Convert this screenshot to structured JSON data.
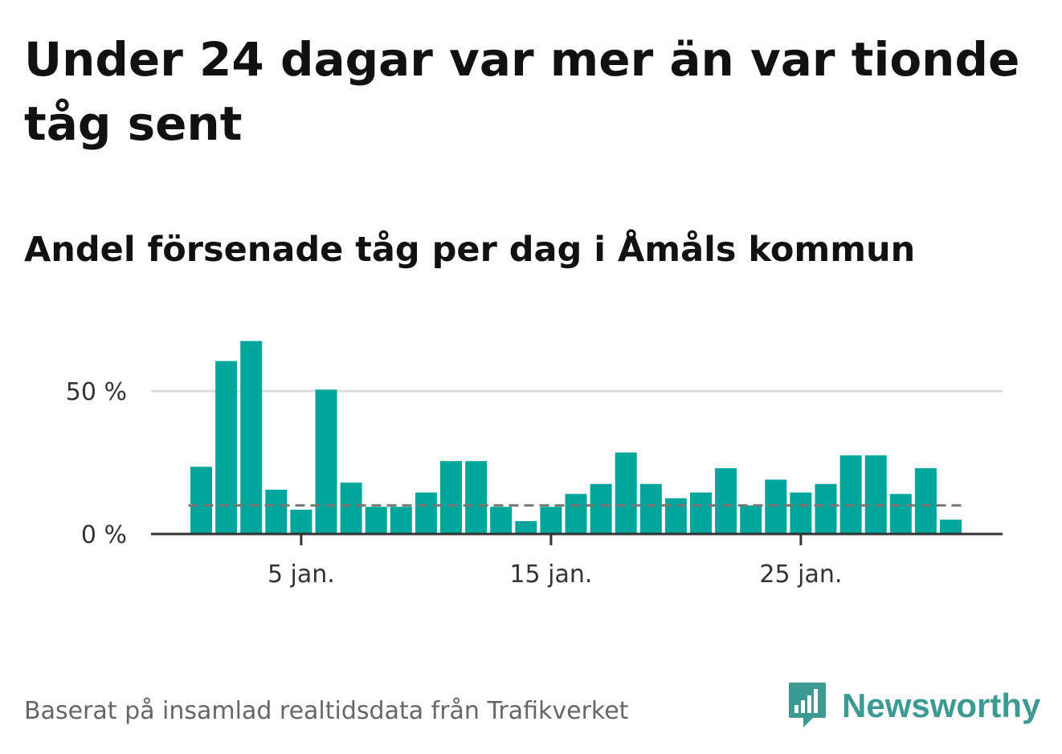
{
  "title": "Under 24 dagar var mer än var tionde tåg sent",
  "subtitle": "Andel försenade tåg per dag i Åmåls kommun",
  "source": "Baserat på insamlad realtidsdata från Trafikverket",
  "brand": {
    "name": "Newsworthy",
    "logo_icon": "newsworthy-logo-icon",
    "color": "#3c9a92"
  },
  "chart_data": {
    "type": "bar",
    "title": "Under 24 dagar var mer än var tionde tåg sent",
    "subtitle": "Andel försenade tåg per dag i Åmåls kommun",
    "xlabel": "",
    "ylabel": "",
    "categories": [
      "1 jan.",
      "2 jan.",
      "3 jan.",
      "4 jan.",
      "5 jan.",
      "6 jan.",
      "7 jan.",
      "8 jan.",
      "9 jan.",
      "10 jan.",
      "11 jan.",
      "12 jan.",
      "13 jan.",
      "14 jan.",
      "15 jan.",
      "16 jan.",
      "17 jan.",
      "18 jan.",
      "19 jan.",
      "20 jan.",
      "21 jan.",
      "22 jan.",
      "23 jan.",
      "24 jan.",
      "25 jan.",
      "26 jan.",
      "27 jan.",
      "28 jan.",
      "29 jan.",
      "30 jan.",
      "31 jan."
    ],
    "values": [
      23.5,
      60.5,
      67.5,
      15.5,
      8.5,
      50.5,
      18,
      9.5,
      9.5,
      14.5,
      25.5,
      25.5,
      9.5,
      4.5,
      9.5,
      14,
      17.5,
      28.5,
      17.5,
      12.5,
      14.5,
      23,
      10,
      19,
      14.5,
      17.5,
      27.5,
      27.5,
      14,
      23,
      5
    ],
    "xticks": [
      "5 jan.",
      "15 jan.",
      "25 jan."
    ],
    "xtick_days": [
      5,
      15,
      25
    ],
    "yticks": [
      "0 %",
      "50 %"
    ],
    "ytick_values": [
      0,
      50
    ],
    "ylim": [
      0,
      70
    ],
    "threshold": 10,
    "threshold_style": "dashed",
    "grid": true,
    "legend": "none",
    "colors": {
      "bar": "#00a59b",
      "threshold": "#777777",
      "grid": "#dddddd",
      "axis": "#333333"
    }
  }
}
